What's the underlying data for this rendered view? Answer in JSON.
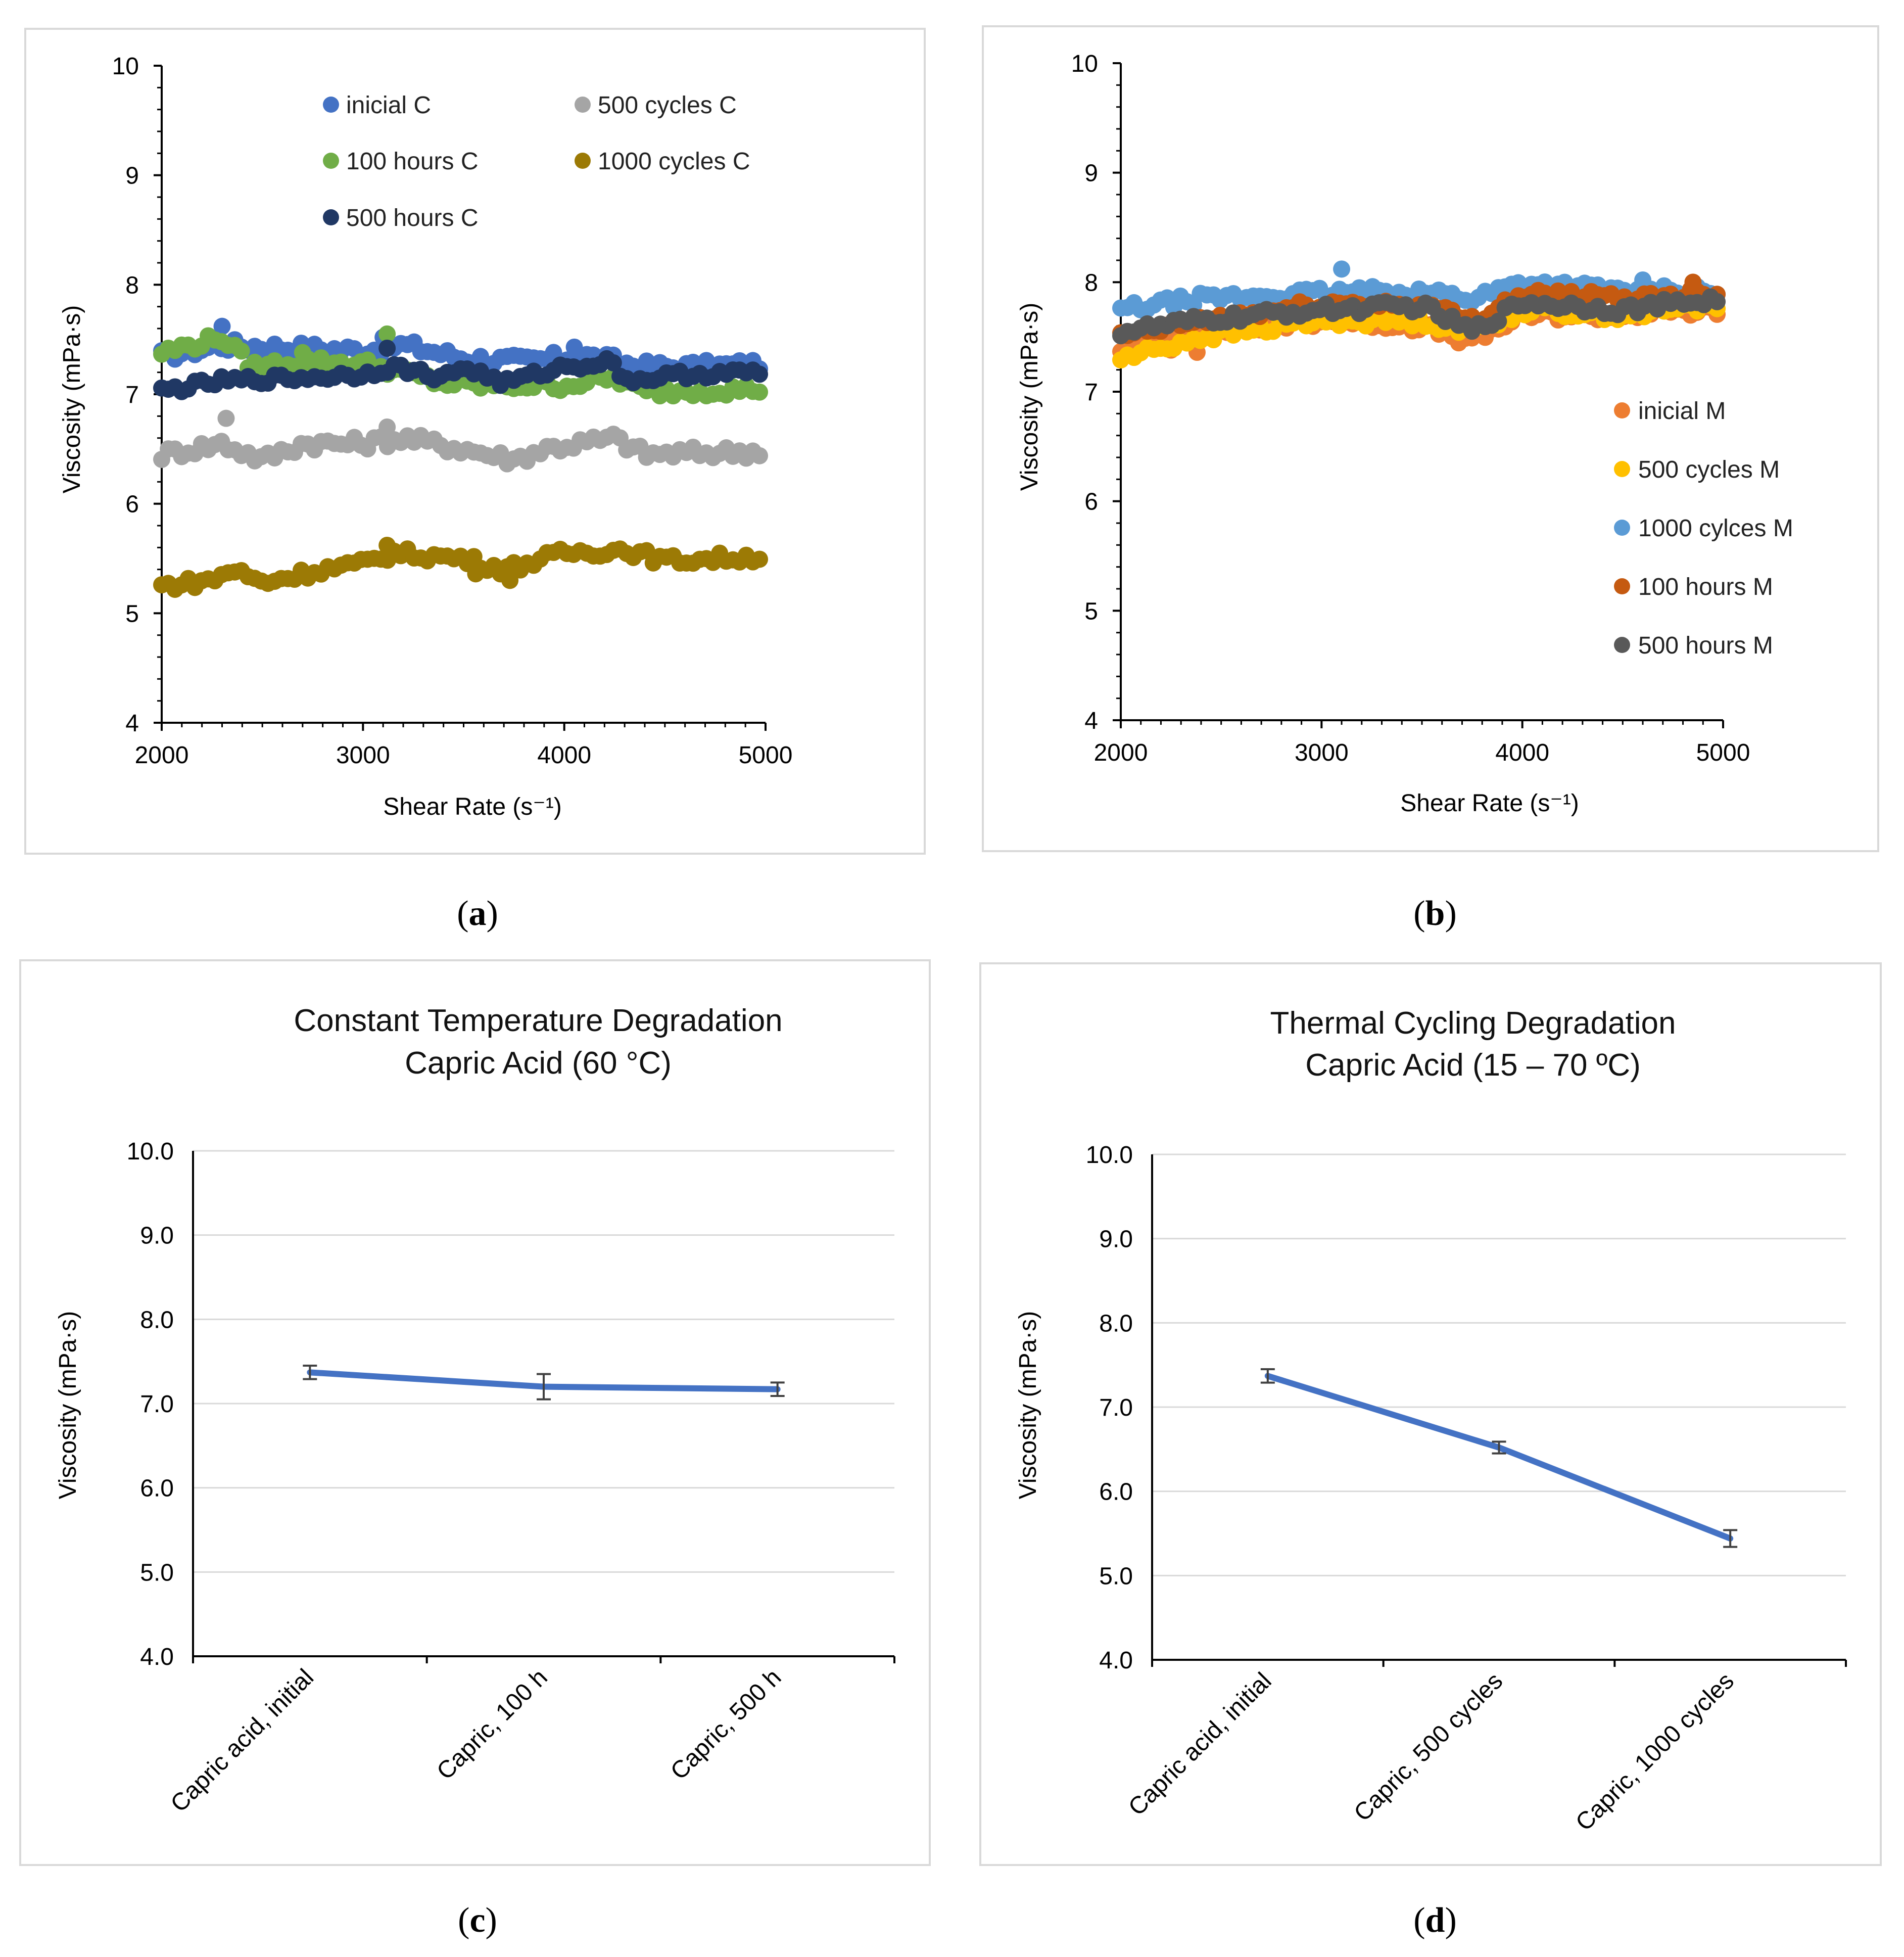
{
  "charts": [
    {
      "id": "a",
      "panel_label": "a",
      "chart_data": {
        "type": "scatter",
        "title": "",
        "xlabel": "Shear Rate (s⁻¹)",
        "ylabel": "Viscosity (mPa·s)",
        "xlim": [
          2000,
          5000
        ],
        "ylim": [
          4,
          10
        ],
        "xticks": [
          "2000",
          "3000",
          "4000",
          "5000"
        ],
        "yticks": [
          "4",
          "5",
          "6",
          "7",
          "8",
          "9",
          "10"
        ],
        "series": [
          {
            "name": "inicial C",
            "color": "#4472C4",
            "base": [
              [
                2000,
                7.35
              ],
              [
                2300,
                7.45
              ],
              [
                2700,
                7.42
              ],
              [
                3000,
                7.4
              ],
              [
                3200,
                7.45
              ],
              [
                3500,
                7.33
              ],
              [
                3800,
                7.3
              ],
              [
                4100,
                7.35
              ],
              [
                4400,
                7.25
              ],
              [
                4700,
                7.25
              ],
              [
                5000,
                7.28
              ]
            ],
            "noise": 0.06,
            "spikes": [
              [
                2300,
                7.62
              ],
              [
                3100,
                7.52
              ],
              [
                4050,
                7.43
              ]
            ]
          },
          {
            "name": "500 cycles C",
            "color": "#A5A5A5",
            "base": [
              [
                2000,
                6.45
              ],
              [
                2300,
                6.55
              ],
              [
                2500,
                6.4
              ],
              [
                2700,
                6.55
              ],
              [
                3000,
                6.55
              ],
              [
                3200,
                6.6
              ],
              [
                3500,
                6.5
              ],
              [
                3750,
                6.4
              ],
              [
                3900,
                6.5
              ],
              [
                4250,
                6.6
              ],
              [
                4400,
                6.45
              ],
              [
                5000,
                6.48
              ]
            ],
            "noise": 0.06,
            "spikes": [
              [
                2320,
                6.78
              ],
              [
                3120,
                6.7
              ]
            ]
          },
          {
            "name": "100 hours C",
            "color": "#70AD47",
            "base": [
              [
                2000,
                7.38
              ],
              [
                2300,
                7.52
              ],
              [
                2450,
                7.25
              ],
              [
                2700,
                7.3
              ],
              [
                3000,
                7.28
              ],
              [
                3150,
                7.22
              ],
              [
                3400,
                7.1
              ],
              [
                3600,
                7.08
              ],
              [
                4000,
                7.08
              ],
              [
                4250,
                7.15
              ],
              [
                4400,
                7.02
              ],
              [
                5000,
                7.05
              ]
            ],
            "noise": 0.05,
            "spikes": [
              [
                3120,
                7.55
              ],
              [
                2700,
                7.38
              ]
            ]
          },
          {
            "name": "1000 cycles C",
            "color": "#9C7A05",
            "base": [
              [
                2000,
                5.25
              ],
              [
                2250,
                5.3
              ],
              [
                2350,
                5.4
              ],
              [
                2500,
                5.28
              ],
              [
                2800,
                5.4
              ],
              [
                3000,
                5.45
              ],
              [
                3150,
                5.55
              ],
              [
                3500,
                5.5
              ],
              [
                3700,
                5.4
              ],
              [
                4000,
                5.55
              ],
              [
                4300,
                5.58
              ],
              [
                4500,
                5.48
              ],
              [
                5000,
                5.52
              ]
            ],
            "noise": 0.05,
            "spikes": [
              [
                3120,
                5.62
              ],
              [
                3730,
                5.3
              ],
              [
                3560,
                5.36
              ]
            ]
          },
          {
            "name": "500 hours C",
            "color": "#203864",
            "base": [
              [
                2000,
                7.03
              ],
              [
                2300,
                7.12
              ],
              [
                2700,
                7.15
              ],
              [
                3000,
                7.18
              ],
              [
                3150,
                7.25
              ],
              [
                3400,
                7.15
              ],
              [
                3500,
                7.25
              ],
              [
                3700,
                7.1
              ],
              [
                4000,
                7.25
              ],
              [
                4250,
                7.3
              ],
              [
                4300,
                7.12
              ],
              [
                4600,
                7.18
              ],
              [
                5000,
                7.2
              ]
            ],
            "noise": 0.04,
            "spikes": [
              [
                3120,
                7.42
              ]
            ]
          }
        ],
        "legend": {
          "placement": "top-inside-two-columns"
        }
      }
    },
    {
      "id": "b",
      "panel_label": "b",
      "chart_data": {
        "type": "scatter",
        "title": "",
        "xlabel": "Shear Rate (s⁻¹)",
        "ylabel": "Viscosity (mPa·s)",
        "xlim": [
          2000,
          5000
        ],
        "ylim": [
          4,
          10
        ],
        "xticks": [
          "2000",
          "3000",
          "4000",
          "5000"
        ],
        "yticks": [
          "4",
          "5",
          "6",
          "7",
          "8",
          "9",
          "10"
        ],
        "series": [
          {
            "name": "inicial M",
            "color": "#ED7D31",
            "base": [
              [
                2000,
                7.4
              ],
              [
                2400,
                7.55
              ],
              [
                3000,
                7.65
              ],
              [
                3500,
                7.6
              ],
              [
                3750,
                7.45
              ],
              [
                4000,
                7.7
              ],
              [
                4500,
                7.7
              ],
              [
                5000,
                7.75
              ]
            ],
            "noise": 0.05,
            "spikes": [
              [
                2250,
                7.38
              ],
              [
                2380,
                7.36
              ]
            ]
          },
          {
            "name": "500 cycles M",
            "color": "#FFC000",
            "base": [
              [
                2000,
                7.3
              ],
              [
                2400,
                7.5
              ],
              [
                3000,
                7.65
              ],
              [
                3500,
                7.65
              ],
              [
                3750,
                7.55
              ],
              [
                4000,
                7.75
              ],
              [
                4500,
                7.7
              ],
              [
                5000,
                7.8
              ]
            ],
            "noise": 0.05,
            "spikes": []
          },
          {
            "name": "1000 cylces M",
            "color": "#5B9BD5",
            "base": [
              [
                2000,
                7.75
              ],
              [
                2400,
                7.85
              ],
              [
                3000,
                7.9
              ],
              [
                3500,
                7.92
              ],
              [
                3750,
                7.85
              ],
              [
                4000,
                8.0
              ],
              [
                4500,
                7.92
              ],
              [
                5000,
                7.92
              ]
            ],
            "noise": 0.05,
            "spikes": [
              [
                3100,
                8.12
              ],
              [
                4600,
                8.02
              ]
            ]
          },
          {
            "name": "100 hours M",
            "color": "#C55A11",
            "base": [
              [
                2000,
                7.5
              ],
              [
                2400,
                7.65
              ],
              [
                3000,
                7.8
              ],
              [
                3500,
                7.8
              ],
              [
                3750,
                7.65
              ],
              [
                4000,
                7.9
              ],
              [
                4500,
                7.85
              ],
              [
                5000,
                7.92
              ]
            ],
            "noise": 0.05,
            "spikes": [
              [
                4850,
                8.0
              ]
            ]
          },
          {
            "name": "500 hours M",
            "color": "#595959",
            "base": [
              [
                2000,
                7.55
              ],
              [
                2400,
                7.65
              ],
              [
                3000,
                7.75
              ],
              [
                3500,
                7.78
              ],
              [
                3750,
                7.55
              ],
              [
                4000,
                7.82
              ],
              [
                4500,
                7.75
              ],
              [
                5000,
                7.85
              ]
            ],
            "noise": 0.05,
            "spikes": []
          }
        ],
        "legend": {
          "placement": "lower-right-inside"
        }
      }
    },
    {
      "id": "c",
      "panel_label": "c",
      "chart_data": {
        "type": "line",
        "title": "Constant Temperature Degradation",
        "subtitle": "Capric Acid (60 °C)",
        "xlabel": "",
        "ylabel": "Viscosity (mPa·s)",
        "ylim": [
          4.0,
          10.0
        ],
        "yticks": [
          "4.0",
          "5.0",
          "6.0",
          "7.0",
          "8.0",
          "9.0",
          "10.0"
        ],
        "categories": [
          "Capric acid, initial",
          "Capric, 100 h",
          "Capric, 500 h"
        ],
        "series": [
          {
            "name": "Viscosity",
            "color": "#4472C4",
            "values": [
              7.37,
              7.2,
              7.17
            ],
            "errors": [
              0.08,
              0.15,
              0.08
            ]
          }
        ],
        "grid": true
      }
    },
    {
      "id": "d",
      "panel_label": "d",
      "chart_data": {
        "type": "line",
        "title": "Thermal Cycling Degradation",
        "subtitle": "Capric Acid (15 – 70 ºC)",
        "xlabel": "",
        "ylabel": "Viscosity (mPa·s)",
        "ylim": [
          4.0,
          10.0
        ],
        "yticks": [
          "4.0",
          "5.0",
          "6.0",
          "7.0",
          "8.0",
          "9.0",
          "10.0"
        ],
        "categories": [
          "Capric acid, initial",
          "Capric, 500 cycles",
          "Capric, 1000 cycles"
        ],
        "series": [
          {
            "name": "Viscosity",
            "color": "#4472C4",
            "values": [
              7.37,
              6.52,
              5.44
            ],
            "errors": [
              0.08,
              0.07,
              0.1
            ]
          }
        ],
        "grid": true
      }
    }
  ]
}
